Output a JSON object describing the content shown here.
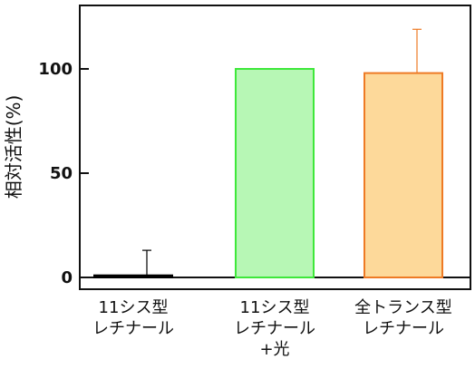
{
  "chart_data": {
    "type": "bar",
    "title": "",
    "xlabel": "",
    "ylabel": "相対活性(%)",
    "ylim": [
      -6,
      131
    ],
    "yticks": [
      0,
      50,
      100
    ],
    "grid": false,
    "categories": [
      [
        "11シス型",
        "レチナール"
      ],
      [
        "11シス型",
        "レチナール",
        "+光"
      ],
      [
        "全トランス型",
        "レチナール"
      ]
    ],
    "values": [
      1,
      100,
      98
    ],
    "error_bars": [
      12,
      0,
      21
    ],
    "colors": {
      "fills": [
        "#000000",
        "#b7f7b5",
        "#fdd99a"
      ],
      "strokes": [
        "#000000",
        "#3ee83a",
        "#ee7a25"
      ],
      "axis": "#111111"
    }
  }
}
